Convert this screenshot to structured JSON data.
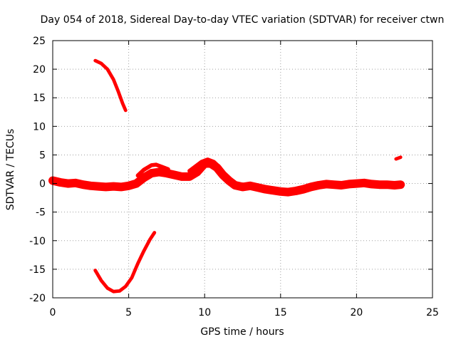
{
  "chart_data": {
    "type": "scatter",
    "title": "Day 054 of 2018, Sidereal Day-to-day VTEC variation (SDTVAR) for receiver ctwn",
    "xlabel": "GPS time / hours",
    "ylabel": "SDTVAR / TECUs",
    "xlim": [
      0,
      25
    ],
    "ylim": [
      -20,
      25
    ],
    "xticks": [
      0,
      5,
      10,
      15,
      20,
      25
    ],
    "yticks": [
      -20,
      -15,
      -10,
      -5,
      0,
      5,
      10,
      15,
      20,
      25
    ],
    "grid": true,
    "legend": "none",
    "color": "#ff0000",
    "series": [
      {
        "name": "arc-main",
        "band": 1.5,
        "points": [
          [
            0.0,
            0.5
          ],
          [
            0.5,
            0.2
          ],
          [
            1.0,
            0.0
          ],
          [
            1.5,
            0.1
          ],
          [
            2.0,
            -0.2
          ],
          [
            2.5,
            -0.4
          ],
          [
            3.0,
            -0.5
          ],
          [
            3.5,
            -0.6
          ],
          [
            4.0,
            -0.5
          ],
          [
            4.5,
            -0.6
          ],
          [
            5.0,
            -0.4
          ],
          [
            5.5,
            0.0
          ],
          [
            6.0,
            1.0
          ],
          [
            6.5,
            1.8
          ],
          [
            7.0,
            2.0
          ],
          [
            7.5,
            1.8
          ],
          [
            8.0,
            1.5
          ],
          [
            8.5,
            1.2
          ],
          [
            9.0,
            1.2
          ],
          [
            9.5,
            2.0
          ],
          [
            10.0,
            3.5
          ],
          [
            10.4,
            3.5
          ],
          [
            10.8,
            2.8
          ],
          [
            11.2,
            1.5
          ],
          [
            11.6,
            0.5
          ],
          [
            12.0,
            -0.3
          ],
          [
            12.5,
            -0.6
          ],
          [
            13.0,
            -0.4
          ],
          [
            13.5,
            -0.7
          ],
          [
            14.0,
            -1.0
          ],
          [
            14.5,
            -1.2
          ],
          [
            15.0,
            -1.4
          ],
          [
            15.5,
            -1.5
          ],
          [
            16.0,
            -1.3
          ],
          [
            16.5,
            -1.0
          ],
          [
            17.0,
            -0.6
          ],
          [
            17.5,
            -0.3
          ],
          [
            18.0,
            -0.1
          ],
          [
            18.5,
            -0.2
          ],
          [
            19.0,
            -0.3
          ],
          [
            19.5,
            -0.1
          ],
          [
            20.0,
            0.0
          ],
          [
            20.5,
            0.1
          ],
          [
            21.0,
            -0.1
          ],
          [
            21.5,
            -0.2
          ],
          [
            22.0,
            -0.2
          ],
          [
            22.5,
            -0.3
          ],
          [
            22.9,
            -0.2
          ]
        ]
      },
      {
        "name": "arc-upper",
        "band": 0.7,
        "points": [
          [
            5.6,
            1.4
          ],
          [
            6.0,
            2.4
          ],
          [
            6.5,
            3.2
          ],
          [
            6.8,
            3.3
          ],
          [
            7.2,
            2.9
          ],
          [
            7.6,
            2.5
          ]
        ]
      },
      {
        "name": "arc-mid",
        "band": 0.7,
        "points": [
          [
            9.0,
            2.2
          ],
          [
            9.4,
            3.0
          ],
          [
            9.8,
            3.8
          ],
          [
            10.2,
            4.2
          ],
          [
            10.6,
            3.8
          ],
          [
            11.0,
            2.8
          ]
        ]
      },
      {
        "name": "arc-high",
        "band": 0.6,
        "points": [
          [
            2.8,
            21.5
          ],
          [
            3.2,
            21.0
          ],
          [
            3.6,
            20.0
          ],
          [
            4.0,
            18.2
          ],
          [
            4.3,
            16.2
          ],
          [
            4.6,
            14.0
          ],
          [
            4.8,
            12.8
          ]
        ]
      },
      {
        "name": "arc-low",
        "band": 0.6,
        "points": [
          [
            2.8,
            -15.2
          ],
          [
            3.2,
            -17.0
          ],
          [
            3.6,
            -18.3
          ],
          [
            4.0,
            -18.9
          ],
          [
            4.4,
            -18.8
          ],
          [
            4.8,
            -18.0
          ],
          [
            5.2,
            -16.5
          ],
          [
            5.6,
            -14.0
          ],
          [
            6.0,
            -11.8
          ],
          [
            6.4,
            -9.8
          ],
          [
            6.7,
            -8.6
          ]
        ]
      },
      {
        "name": "isolated-point",
        "band": 0.6,
        "points": [
          [
            22.6,
            4.3
          ],
          [
            22.9,
            4.6
          ]
        ]
      }
    ]
  }
}
